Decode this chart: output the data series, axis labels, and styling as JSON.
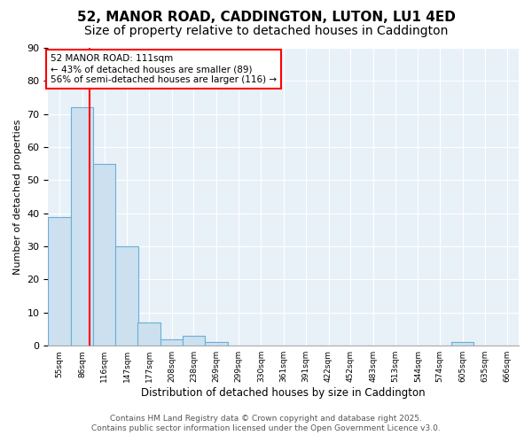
{
  "title1": "52, MANOR ROAD, CADDINGTON, LUTON, LU1 4ED",
  "title2": "Size of property relative to detached houses in Caddington",
  "xlabel": "Distribution of detached houses by size in Caddington",
  "ylabel": "Number of detached properties",
  "bins": [
    "55sqm",
    "86sqm",
    "116sqm",
    "147sqm",
    "177sqm",
    "208sqm",
    "238sqm",
    "269sqm",
    "299sqm",
    "330sqm",
    "361sqm",
    "391sqm",
    "422sqm",
    "452sqm",
    "483sqm",
    "513sqm",
    "544sqm",
    "574sqm",
    "605sqm",
    "635sqm",
    "666sqm"
  ],
  "bin_edges": [
    55,
    86,
    116,
    147,
    177,
    208,
    238,
    269,
    299,
    330,
    361,
    391,
    422,
    452,
    483,
    513,
    544,
    574,
    605,
    635,
    666
  ],
  "values": [
    39,
    72,
    55,
    30,
    7,
    2,
    3,
    1,
    0,
    0,
    0,
    0,
    0,
    0,
    0,
    0,
    0,
    0,
    1,
    0,
    0
  ],
  "bar_color": "#cce0f0",
  "bar_edge_color": "#6aaed6",
  "red_line_x": 111,
  "annotation_text": "52 MANOR ROAD: 111sqm\n← 43% of detached houses are smaller (89)\n56% of semi-detached houses are larger (116) →",
  "annotation_box_color": "white",
  "annotation_box_edge_color": "red",
  "ylim": [
    0,
    90
  ],
  "yticks": [
    0,
    10,
    20,
    30,
    40,
    50,
    60,
    70,
    80,
    90
  ],
  "bg_color": "#e8f0f8",
  "footer1": "Contains HM Land Registry data © Crown copyright and database right 2025.",
  "footer2": "Contains public sector information licensed under the Open Government Licence v3.0.",
  "title1_fontsize": 11,
  "title2_fontsize": 10,
  "footer_color": "#555555"
}
